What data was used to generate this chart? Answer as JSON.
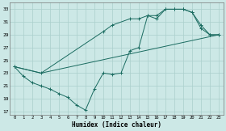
{
  "xlabel": "Humidex (Indice chaleur)",
  "bg_color": "#cce8e6",
  "grid_color": "#aacfcc",
  "line_color": "#1a6b60",
  "xlim": [
    -0.5,
    23.5
  ],
  "ylim": [
    16.5,
    34
  ],
  "xticks": [
    0,
    1,
    2,
    3,
    4,
    5,
    6,
    7,
    8,
    9,
    10,
    11,
    12,
    13,
    14,
    15,
    16,
    17,
    18,
    19,
    20,
    21,
    22,
    23
  ],
  "yticks": [
    17,
    19,
    21,
    23,
    25,
    27,
    29,
    31,
    33
  ],
  "line1_x": [
    0,
    1,
    2,
    3,
    4,
    5,
    6,
    7,
    8,
    9,
    10,
    11,
    12,
    13,
    14,
    15,
    16,
    17,
    18,
    19,
    20,
    21,
    22,
    23
  ],
  "line1_y": [
    24,
    22.5,
    21.5,
    21,
    20.5,
    19.8,
    19.2,
    18.0,
    17.2,
    20.5,
    23,
    22.8,
    23,
    26.5,
    27,
    32,
    32,
    33,
    33,
    33,
    32.5,
    30.5,
    29,
    29
  ],
  "line2_x": [
    0,
    3,
    10,
    11,
    13,
    14,
    15,
    16,
    17,
    18,
    19,
    20,
    21,
    22,
    23
  ],
  "line2_y": [
    24,
    23,
    29.5,
    30.5,
    31.5,
    31.5,
    32,
    31.5,
    33,
    33,
    33,
    32.5,
    30,
    29,
    29
  ],
  "line3_x": [
    0,
    3,
    23
  ],
  "line3_y": [
    24,
    23,
    29
  ]
}
